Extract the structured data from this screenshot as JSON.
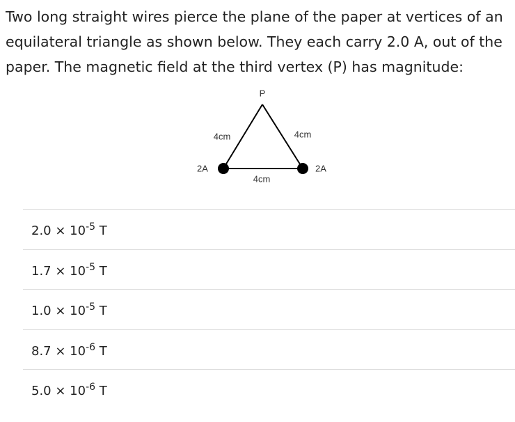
{
  "question": {
    "text": "Two long straight wires pierce the plane of the paper at vertices of an equilateral triangle as shown below. They each carry 2.0 A, out of the paper. The magnetic field at the third vertex (P) has magnitude:"
  },
  "diagram": {
    "vertex_label": "P",
    "left_side": "4cm",
    "right_side": "4cm",
    "bottom_side": "4cm",
    "left_current": "2A",
    "right_current": "2A"
  },
  "options": [
    {
      "base": "2.0 × 10",
      "exponent": "-5",
      "unit": "T"
    },
    {
      "base": "1.7 × 10",
      "exponent": "-5",
      "unit": "T"
    },
    {
      "base": "1.0 × 10",
      "exponent": "-5",
      "unit": "T"
    },
    {
      "base": "8.7 × 10",
      "exponent": "-6",
      "unit": "T"
    },
    {
      "base": "5.0 × 10",
      "exponent": "-6",
      "unit": "T"
    }
  ]
}
